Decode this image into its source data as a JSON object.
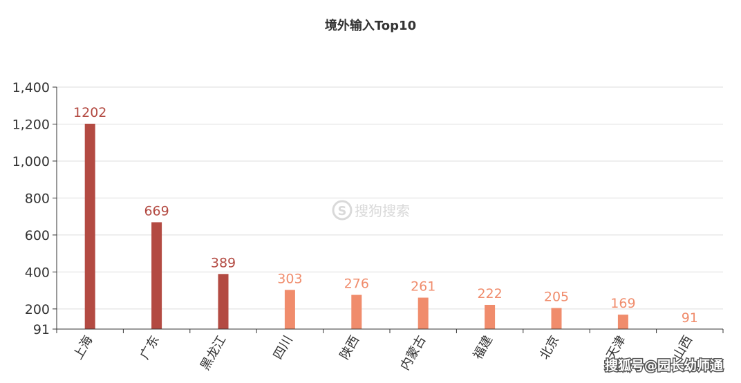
{
  "chart_data": {
    "type": "bar",
    "title": "境外输入Top10",
    "categories": [
      "上海",
      "广东",
      "黑龙江",
      "四川",
      "陕西",
      "内蒙古",
      "福建",
      "北京",
      "天津",
      "山西"
    ],
    "values": [
      1202,
      669,
      389,
      303,
      276,
      261,
      222,
      205,
      169,
      91
    ],
    "y_ticks": [
      {
        "value": 91,
        "label": "91"
      },
      {
        "value": 200,
        "label": "200"
      },
      {
        "value": 400,
        "label": "400"
      },
      {
        "value": 600,
        "label": "600"
      },
      {
        "value": 800,
        "label": "800"
      },
      {
        "value": 1000,
        "label": "1,000"
      },
      {
        "value": 1200,
        "label": "1,200"
      },
      {
        "value": 1400,
        "label": "1,400"
      }
    ],
    "ylim": [
      91,
      1400
    ],
    "grid": true,
    "legend": "none",
    "xlabel": "",
    "ylabel": "",
    "colors": {
      "high": "#b34a42",
      "low": "#f08c6c",
      "grid": "#dddddd",
      "axis": "#333333"
    },
    "high_count": 3
  },
  "watermark": {
    "text": "搜狗搜索",
    "icon": "sogou-logo-icon"
  },
  "credit": "搜狐号@园长幼师通"
}
